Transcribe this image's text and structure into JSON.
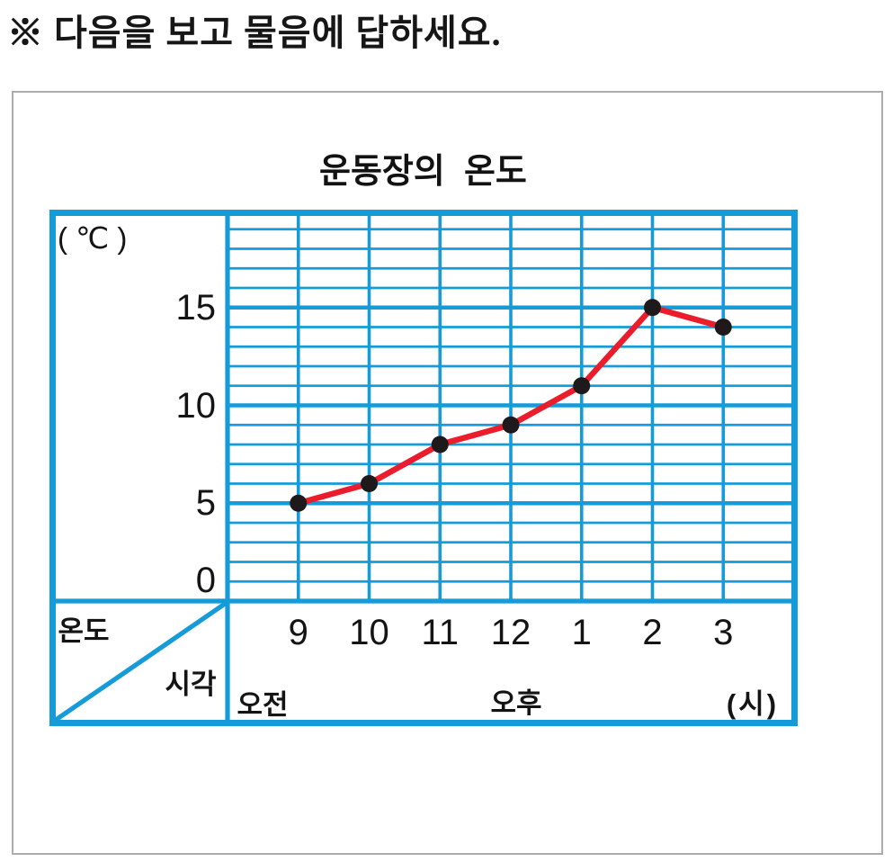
{
  "instruction": "※ 다음을 보고 물음에 답하세요.",
  "chart": {
    "title": "운동장의  온도",
    "y_unit_label": "( ℃ )",
    "x_unit_label": "(시)",
    "corner_row_label": "온도",
    "corner_col_label": "시각",
    "period_am": "오전",
    "period_pm": "오후"
  },
  "chart_data": {
    "type": "line",
    "title": "운동장의 온도",
    "categories": [
      "9",
      "10",
      "11",
      "12",
      "1",
      "2",
      "3"
    ],
    "values": [
      5,
      6,
      8,
      9,
      11,
      15,
      14
    ],
    "x_period_labels": [
      {
        "label": "오전",
        "covers": [
          "9",
          "10",
          "11"
        ]
      },
      {
        "label": "오후",
        "covers": [
          "12",
          "1",
          "2",
          "3"
        ]
      }
    ],
    "xlabel": "시각 (시)",
    "ylabel": "온도 ( ℃ )",
    "y_ticks_top_to_bottom": [
      15,
      10,
      5,
      0
    ],
    "ylim": [
      0,
      20
    ],
    "y_unit_per_cell": 1,
    "thick_gridline_every": 5,
    "grid": true,
    "legend": "none"
  },
  "colors": {
    "grid_blue": "#159BD8",
    "line_red": "#EB1C2B",
    "point_black": "#1E1A1B",
    "text": "#141414",
    "panel_border_gray": "#ACACAC"
  }
}
